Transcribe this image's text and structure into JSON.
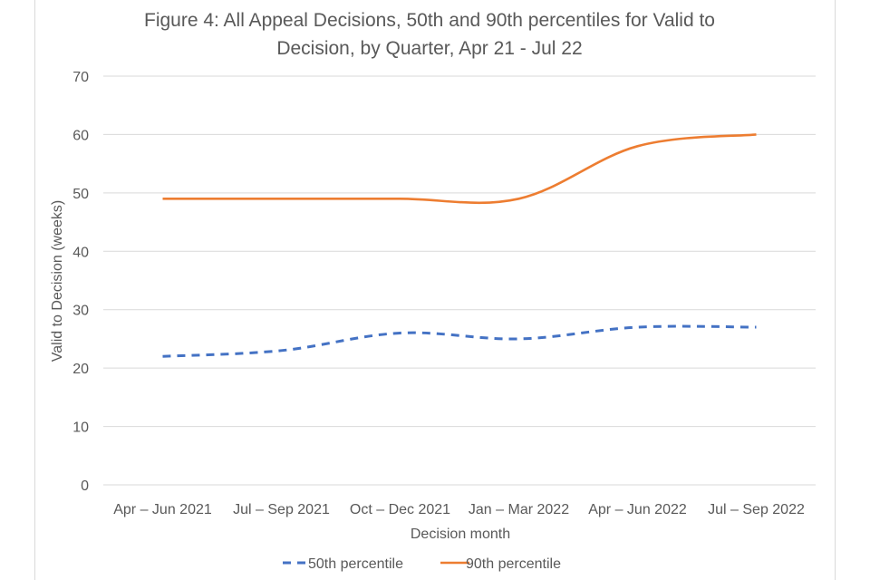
{
  "chart_data": {
    "type": "line",
    "title_lines": [
      "Figure 4: All Appeal Decisions, 50th and 90th percentiles for Valid to",
      "Decision, by Quarter, Apr 21 - Jul 22"
    ],
    "categories": [
      "Apr – Jun 2021",
      "Jul – Sep 2021",
      "Oct – Dec 2021",
      "Jan – Mar 2022",
      "Apr – Jun 2022",
      "Jul – Sep 2022"
    ],
    "series": [
      {
        "name": "50th percentile",
        "values": [
          22,
          23,
          26,
          25,
          27,
          27
        ],
        "color": "#4472c4",
        "dash": "dashed"
      },
      {
        "name": "90th percentile",
        "values": [
          49,
          49,
          49,
          49,
          58,
          60
        ],
        "color": "#ed7d31",
        "dash": "solid"
      }
    ],
    "xlabel": "Decision month",
    "ylabel": "Valid to Decision (weeks)",
    "ylim": [
      0,
      70
    ],
    "yticks": [
      0,
      10,
      20,
      30,
      40,
      50,
      60,
      70
    ],
    "grid": true,
    "legend": "bottom"
  }
}
